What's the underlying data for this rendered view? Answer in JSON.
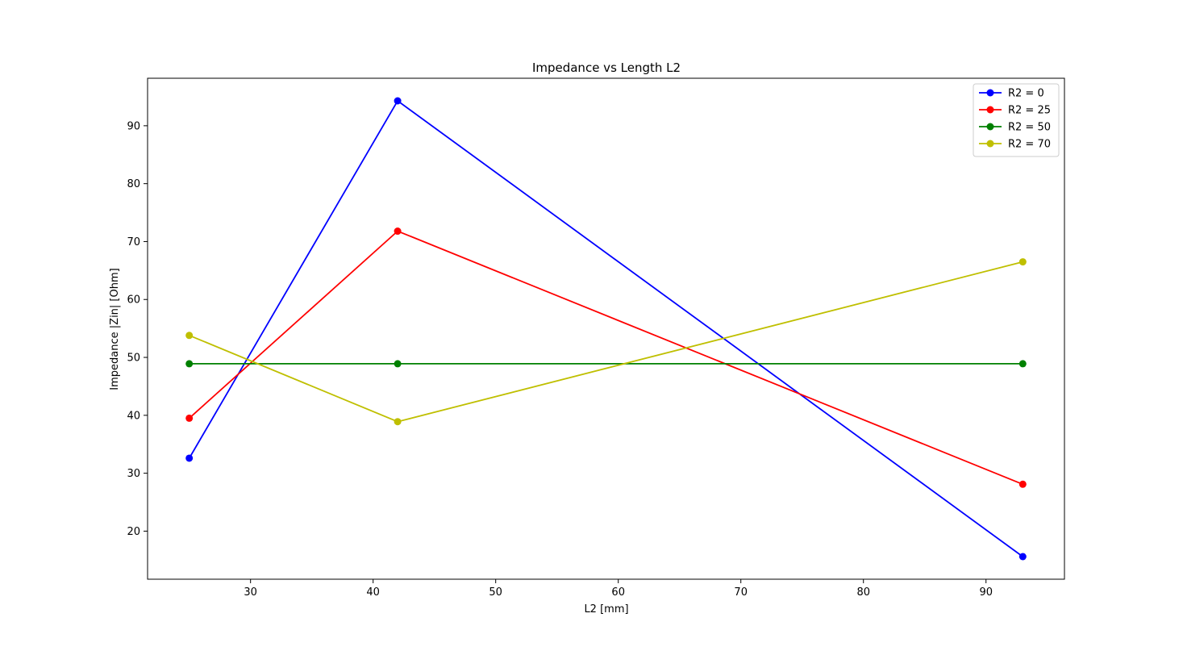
{
  "chart_data": {
    "type": "line",
    "title": "Impedance vs Length L2",
    "xlabel": "L2 [mm]",
    "ylabel": "Impedance |Zin| [Ohm]",
    "x": [
      25,
      42,
      93
    ],
    "xlim": [
      21.6,
      96.4
    ],
    "ylim": [
      11.7,
      98.2
    ],
    "xticks": [
      30,
      40,
      50,
      60,
      70,
      80,
      90
    ],
    "yticks": [
      20,
      30,
      40,
      50,
      60,
      70,
      80,
      90
    ],
    "grid": false,
    "legend_position": "top-right",
    "series": [
      {
        "name": "R2 = 0",
        "color": "#0000ff",
        "values": [
          32.6,
          94.3,
          15.6
        ]
      },
      {
        "name": "R2 = 25",
        "color": "#ff0000",
        "values": [
          39.5,
          71.8,
          28.1
        ]
      },
      {
        "name": "R2 = 50",
        "color": "#008000",
        "values": [
          48.9,
          48.9,
          48.9
        ]
      },
      {
        "name": "R2 = 70",
        "color": "#bfbf00",
        "values": [
          53.8,
          38.9,
          66.5
        ]
      }
    ]
  }
}
